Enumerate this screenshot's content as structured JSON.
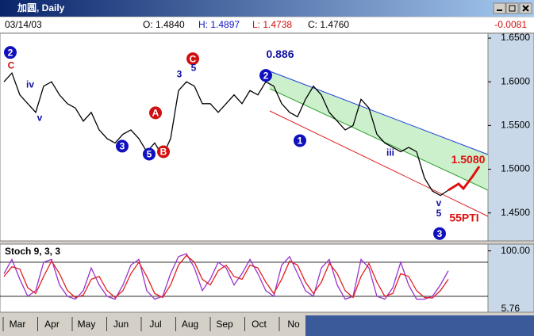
{
  "window": {
    "title": "加圆, Daily"
  },
  "header": {
    "date": "03/14/03",
    "open": "O: 1.4840",
    "high": "H: 1.4897",
    "low": "L: 1.4738",
    "close": "C: 1.4760",
    "change": "-0.0081"
  },
  "chart_data": [
    {
      "type": "line",
      "color": "#000000",
      "x": [
        0,
        1,
        2,
        3,
        4,
        5,
        6,
        7,
        8,
        9,
        10,
        11,
        12,
        13,
        14,
        15,
        16,
        17,
        18,
        19,
        20,
        21,
        22,
        23,
        24,
        25,
        26,
        27,
        28,
        29,
        30,
        31,
        32,
        33,
        34,
        35,
        36,
        37,
        38,
        39,
        40,
        41,
        42,
        43,
        44,
        45,
        46,
        47,
        48,
        49,
        50,
        51,
        52,
        53,
        54,
        55,
        56
      ],
      "values": [
        1.6,
        1.61,
        1.585,
        1.575,
        1.565,
        1.595,
        1.6,
        1.585,
        1.575,
        1.57,
        1.555,
        1.565,
        1.545,
        1.535,
        1.53,
        1.54,
        1.545,
        1.535,
        1.52,
        1.53,
        1.515,
        1.535,
        1.59,
        1.6,
        1.595,
        1.575,
        1.575,
        1.565,
        1.575,
        1.585,
        1.575,
        1.59,
        1.585,
        1.6,
        1.595,
        1.575,
        1.565,
        1.56,
        1.58,
        1.595,
        1.585,
        1.565,
        1.555,
        1.545,
        1.55,
        1.58,
        1.57,
        1.54,
        1.53,
        1.525,
        1.52,
        1.525,
        1.52,
        1.49,
        1.475,
        1.47,
        1.476
      ],
      "xlim": [
        -0.5,
        61
      ],
      "ylim": [
        1.418,
        1.6555
      ],
      "yticks": [
        {
          "value": 1.65,
          "label": "1.6500"
        },
        {
          "value": 1.6,
          "label": "1.6000"
        },
        {
          "value": 1.55,
          "label": "1.5500"
        },
        {
          "value": 1.5,
          "label": "1.5000"
        },
        {
          "value": 1.45,
          "label": "1.4500"
        }
      ],
      "categories": [
        "Mar",
        "Apr",
        "May",
        "Jun",
        "Jul",
        "Aug",
        "Sep",
        "Oct",
        "No"
      ],
      "annotations": [
        {
          "text": "2",
          "x": 0.8,
          "y": 1.6336,
          "color": "#1010c0",
          "circle": true
        },
        {
          "text": "C",
          "x": 0.9,
          "y": 1.6191,
          "color": "#d01010",
          "circle": false
        },
        {
          "text": "iv",
          "x": 3.3,
          "y": 1.5973,
          "color": "#1010a0",
          "circle": false
        },
        {
          "text": "v",
          "x": 4.5,
          "y": 1.5591,
          "color": "#1010a0",
          "circle": false
        },
        {
          "text": "3",
          "x": 14.9,
          "y": 1.5264,
          "color": "#1010c0",
          "circle": true
        },
        {
          "text": "5",
          "x": 18.3,
          "y": 1.5173,
          "color": "#1010c0",
          "circle": true
        },
        {
          "text": "A",
          "x": 19.1,
          "y": 1.5645,
          "color": "#d01010",
          "circle": true
        },
        {
          "text": "B",
          "x": 20.1,
          "y": 1.52,
          "color": "#d01010",
          "circle": true
        },
        {
          "text": "3",
          "x": 22.1,
          "y": 1.6091,
          "color": "#1010a0",
          "circle": false
        },
        {
          "text": "C",
          "x": 23.8,
          "y": 1.6264,
          "color": "#d01010",
          "circle": true
        },
        {
          "text": "5",
          "x": 23.9,
          "y": 1.6164,
          "color": "#1010a0",
          "circle": false
        },
        {
          "text": "2",
          "x": 33.0,
          "y": 1.6073,
          "color": "#1010c0",
          "circle": true
        },
        {
          "text": "0.886",
          "x": 34.8,
          "y": 1.6318,
          "color": "#1010a0",
          "circle": false
        },
        {
          "text": "1",
          "x": 37.3,
          "y": 1.5327,
          "color": "#1010c0",
          "circle": true
        },
        {
          "text": "iii",
          "x": 48.7,
          "y": 1.5191,
          "color": "#1010a0",
          "circle": false
        },
        {
          "text": "v",
          "x": 54.8,
          "y": 1.4618,
          "color": "#1010a0",
          "circle": false
        },
        {
          "text": "5",
          "x": 54.8,
          "y": 1.45,
          "color": "#1010a0",
          "circle": false
        },
        {
          "text": "3",
          "x": 54.9,
          "y": 1.4264,
          "color": "#1010c0",
          "circle": true
        },
        {
          "text": "1.5080",
          "x": 58.5,
          "y": 1.5109,
          "color": "#e01010",
          "circle": false
        },
        {
          "text": "55PTI",
          "x": 58.0,
          "y": 1.4445,
          "color": "#e01010",
          "circle": false
        }
      ]
    },
    {
      "type": "line",
      "title": "Stoch 9, 3, 3",
      "series": [
        {
          "color": "#9933cc",
          "values": [
            60,
            85,
            50,
            20,
            30,
            80,
            85,
            40,
            20,
            15,
            30,
            70,
            40,
            20,
            15,
            40,
            75,
            85,
            30,
            15,
            20,
            60,
            90,
            95,
            70,
            30,
            50,
            80,
            70,
            40,
            60,
            85,
            60,
            30,
            20,
            75,
            90,
            60,
            30,
            20,
            70,
            85,
            40,
            15,
            20,
            85,
            70,
            20,
            15,
            35,
            80,
            40,
            15,
            15,
            20,
            40,
            65
          ]
        },
        {
          "color": "#e02020",
          "values": [
            55,
            72,
            68,
            35,
            25,
            55,
            82,
            60,
            30,
            18,
            22,
            50,
            55,
            30,
            18,
            30,
            60,
            80,
            55,
            25,
            18,
            40,
            75,
            92,
            80,
            50,
            40,
            65,
            75,
            55,
            50,
            75,
            70,
            45,
            25,
            50,
            82,
            75,
            45,
            25,
            45,
            78,
            60,
            30,
            18,
            55,
            78,
            45,
            20,
            25,
            60,
            55,
            30,
            18,
            17,
            30,
            50
          ]
        }
      ],
      "ylim": [
        -8,
        112
      ],
      "yticks": [
        {
          "value": 100,
          "label": "100.00"
        }
      ],
      "levels": [
        80,
        20
      ],
      "last_label": "5.76"
    }
  ]
}
